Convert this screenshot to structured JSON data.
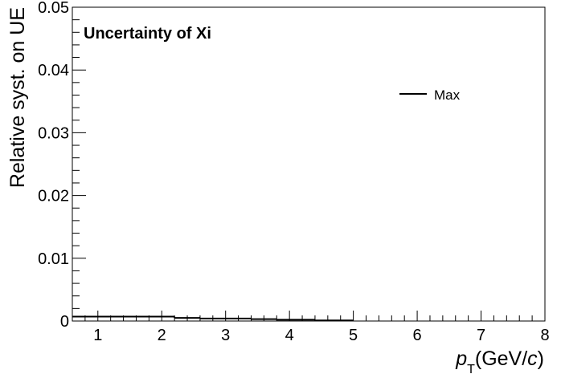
{
  "chart_data": {
    "type": "line",
    "style": "step-histogram",
    "title": "Uncertainty of Xi",
    "xlabel": {
      "main": "p",
      "sub": "T",
      "unit_prefix": "(GeV/",
      "unit_var": "c",
      "unit_suffix": ")"
    },
    "ylabel": "Relative syst. on UE",
    "xlim": [
      0.6,
      8.0
    ],
    "ylim": [
      0,
      0.05
    ],
    "x_ticks": [
      "1",
      "2",
      "3",
      "4",
      "5",
      "6",
      "7",
      "8"
    ],
    "y_ticks": [
      "0",
      "0.01",
      "0.02",
      "0.03",
      "0.04",
      "0.05"
    ],
    "legend": {
      "position": "top-right",
      "entries": [
        "Max"
      ]
    },
    "series": [
      {
        "name": "Max",
        "color": "#000000",
        "bin_edges": [
          0.6,
          1.0,
          1.4,
          1.8,
          2.2,
          2.6,
          3.0,
          3.4,
          3.8,
          4.4,
          5.0
        ],
        "values": [
          0.0007,
          0.0007,
          0.0007,
          0.0007,
          0.0005,
          0.0004,
          0.0004,
          0.0003,
          0.0002,
          0.0001
        ]
      }
    ]
  }
}
